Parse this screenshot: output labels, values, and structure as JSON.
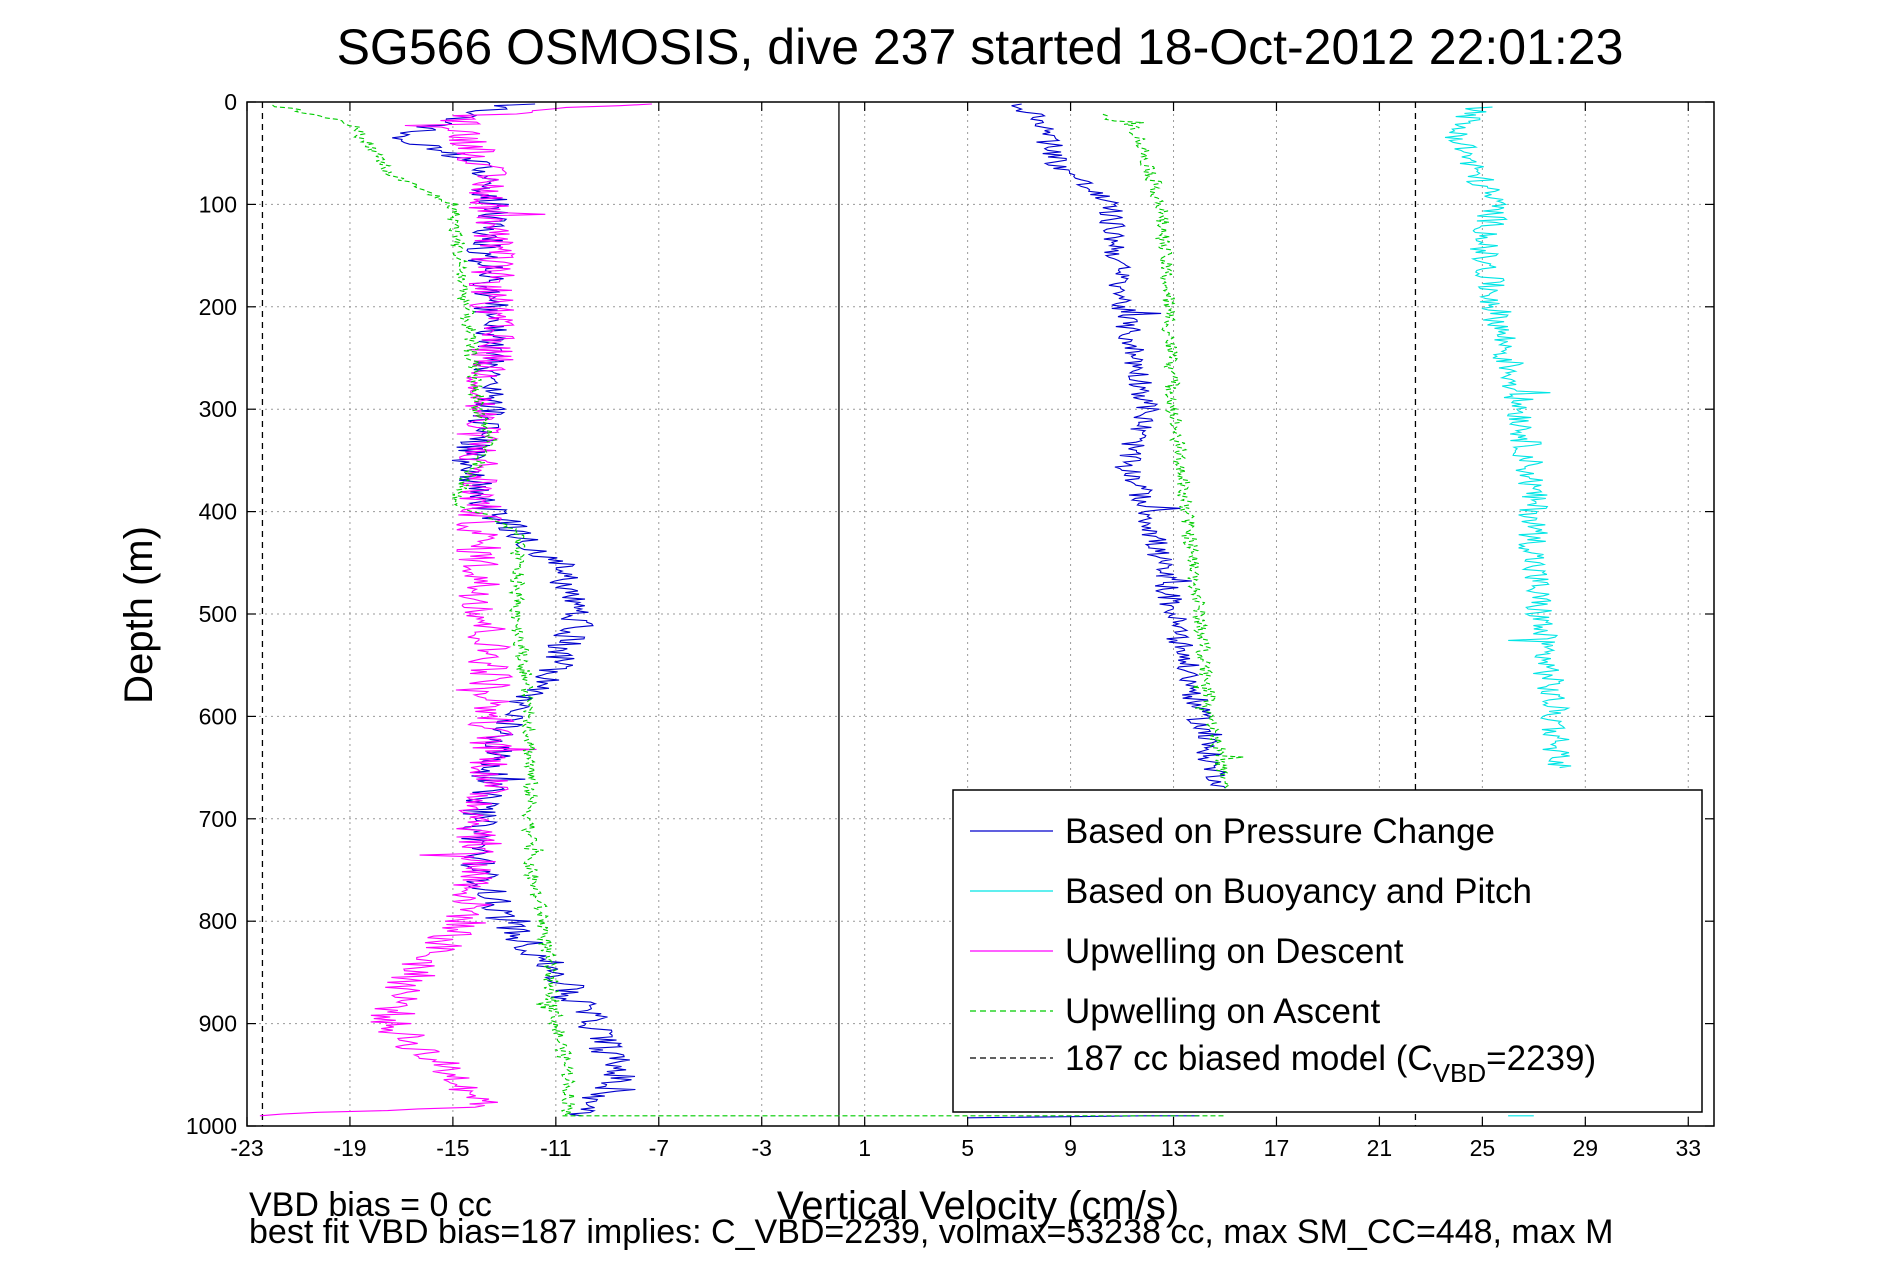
{
  "chart_data": {
    "type": "line",
    "title": "SG566 OSMOSIS, dive 237 started 18-Oct-2012 22:01:23",
    "xlabel": "Vertical Velocity (cm/s)",
    "ylabel": "Depth (m)",
    "xlim": [
      -23,
      34
    ],
    "ylim": [
      1000,
      0
    ],
    "y_reversed": true,
    "grid": true,
    "legend_position": "bottom-right",
    "x_ticks": [
      "-23",
      "-19",
      "-15",
      "-11",
      "-7",
      "-3",
      "1",
      "5",
      "9",
      "13",
      "17",
      "21",
      "25",
      "29",
      "33"
    ],
    "y_ticks": [
      "0",
      "100",
      "200",
      "300",
      "400",
      "500",
      "600",
      "700",
      "800",
      "900",
      "1000"
    ],
    "reference_lines": [
      {
        "x": 0,
        "style": "solid",
        "color": "#000000"
      },
      {
        "x": -22.4,
        "style": "dashed",
        "color": "#000000"
      },
      {
        "x": 22.4,
        "style": "dashed",
        "color": "#000000"
      }
    ],
    "series": [
      {
        "name": "Based on Pressure Change",
        "color": "#0000cc",
        "dash": "solid",
        "legend_label": "Based on Pressure Change",
        "segments": [
          {
            "points": [
              [
                -12.5,
                2
              ],
              [
                -15,
                15
              ],
              [
                -17,
                35
              ],
              [
                -14,
                60
              ],
              [
                -13.5,
                100
              ],
              [
                -13.8,
                150
              ],
              [
                -13.5,
                200
              ],
              [
                -13.5,
                250
              ],
              [
                -13.5,
                300
              ],
              [
                -14.5,
                350
              ],
              [
                -13.5,
                400
              ],
              [
                -11,
                450
              ],
              [
                -10,
                500
              ],
              [
                -11,
                550
              ],
              [
                -12.8,
                600
              ],
              [
                -13.5,
                650
              ],
              [
                -14,
                700
              ],
              [
                -14,
                750
              ],
              [
                -13,
                800
              ],
              [
                -11,
                850
              ],
              [
                -9.5,
                900
              ],
              [
                -8.5,
                950
              ],
              [
                -10,
                990
              ]
            ],
            "noise": 0.7
          },
          {
            "points": [
              [
                7,
                2
              ],
              [
                8,
                20
              ],
              [
                8.5,
                60
              ],
              [
                10.5,
                100
              ],
              [
                10.8,
                150
              ],
              [
                11,
                200
              ],
              [
                11.5,
                250
              ],
              [
                12,
                300
              ],
              [
                11.2,
                350
              ],
              [
                12,
                400
              ],
              [
                12.5,
                450
              ],
              [
                13,
                500
              ],
              [
                13.5,
                550
              ],
              [
                14,
                600
              ],
              [
                14.5,
                650
              ],
              [
                15,
                670
              ]
            ],
            "noise": 0.5
          },
          {
            "points": [
              [
                5,
                992
              ],
              [
                12,
                990
              ],
              [
                14,
                990
              ]
            ],
            "noise": 0
          }
        ]
      },
      {
        "name": "Based on Buoyancy and Pitch",
        "color": "#00e5e5",
        "dash": "solid",
        "legend_label": "Based on Buoyancy and Pitch",
        "segments": [
          {
            "points": [
              [
                22.5,
                0
              ],
              [
                33,
                0
              ]
            ],
            "noise": 0
          },
          {
            "points": [
              [
                25,
                5
              ],
              [
                24,
                25
              ],
              [
                24.5,
                60
              ],
              [
                25.5,
                100
              ],
              [
                25,
                150
              ],
              [
                25.5,
                200
              ],
              [
                26,
                250
              ],
              [
                26.5,
                300
              ],
              [
                26.8,
                350
              ],
              [
                27,
                400
              ],
              [
                27,
                450
              ],
              [
                27.2,
                500
              ],
              [
                27.5,
                550
              ],
              [
                27.8,
                600
              ],
              [
                28,
                650
              ]
            ],
            "noise": 0.6
          },
          {
            "points": [
              [
                26,
                990
              ],
              [
                27,
                990
              ]
            ],
            "noise": 0
          }
        ]
      },
      {
        "name": "Upwelling on Descent",
        "color": "#ff00ff",
        "dash": "solid",
        "legend_label": "Upwelling on Descent",
        "segments": [
          {
            "points": [
              [
                -8,
                2
              ],
              [
                -15,
                15
              ],
              [
                -14,
                50
              ],
              [
                -13.5,
                100
              ],
              [
                -13.5,
                150
              ],
              [
                -13.5,
                200
              ],
              [
                -13.5,
                250
              ],
              [
                -14,
                300
              ],
              [
                -14,
                350
              ],
              [
                -14,
                400
              ],
              [
                -14,
                450
              ],
              [
                -13.8,
                500
              ],
              [
                -13.5,
                550
              ],
              [
                -13.5,
                600
              ],
              [
                -13.5,
                650
              ],
              [
                -14,
                700
              ],
              [
                -14,
                750
              ],
              [
                -14.5,
                800
              ],
              [
                -16.5,
                850
              ],
              [
                -17.5,
                900
              ],
              [
                -15,
                950
              ],
              [
                -13.5,
                980
              ],
              [
                -22.5,
                990
              ]
            ],
            "noise": 0.9
          }
        ]
      },
      {
        "name": "Upwelling on Ascent",
        "color": "#00cc00",
        "dash": "dashed",
        "legend_label": "Upwelling on Ascent",
        "segments": [
          {
            "points": [
              [
                -22,
                3
              ],
              [
                -19,
                20
              ],
              [
                -18,
                50
              ],
              [
                -17.5,
                70
              ],
              [
                -15,
                100
              ],
              [
                -14.5,
                200
              ],
              [
                -14,
                300
              ],
              [
                -13.5,
                330
              ],
              [
                -15,
                390
              ],
              [
                -12.5,
                420
              ],
              [
                -12.5,
                500
              ],
              [
                -12,
                600
              ],
              [
                -12,
                700
              ],
              [
                -12,
                750
              ],
              [
                -11.5,
                800
              ],
              [
                -11,
                900
              ],
              [
                -10.5,
                950
              ],
              [
                -10.5,
                990
              ],
              [
                5,
                990
              ],
              [
                15,
                990
              ]
            ],
            "noise": 0.3
          },
          {
            "points": [
              [
                10,
                12
              ],
              [
                11.5,
                25
              ],
              [
                12,
                60
              ],
              [
                12.5,
                100
              ],
              [
                12.8,
                200
              ],
              [
                13,
                300
              ],
              [
                13.5,
                400
              ],
              [
                14,
                500
              ],
              [
                14.5,
                600
              ],
              [
                15,
                670
              ]
            ],
            "noise": 0.3
          }
        ]
      },
      {
        "name": "187 cc biased model (C_VBD=2239)",
        "color": "#000000",
        "dash": "dashed",
        "legend_label": "187 cc biased model (C",
        "legend_sub": "VBD",
        "legend_tail": "=2239)",
        "segments": []
      }
    ]
  },
  "footnotes": {
    "line1": "VBD bias = 0 cc",
    "line2": "best fit VBD bias=187 implies: C_VBD=2239, volmax=53238 cc, max SM_CC=448, max M"
  }
}
